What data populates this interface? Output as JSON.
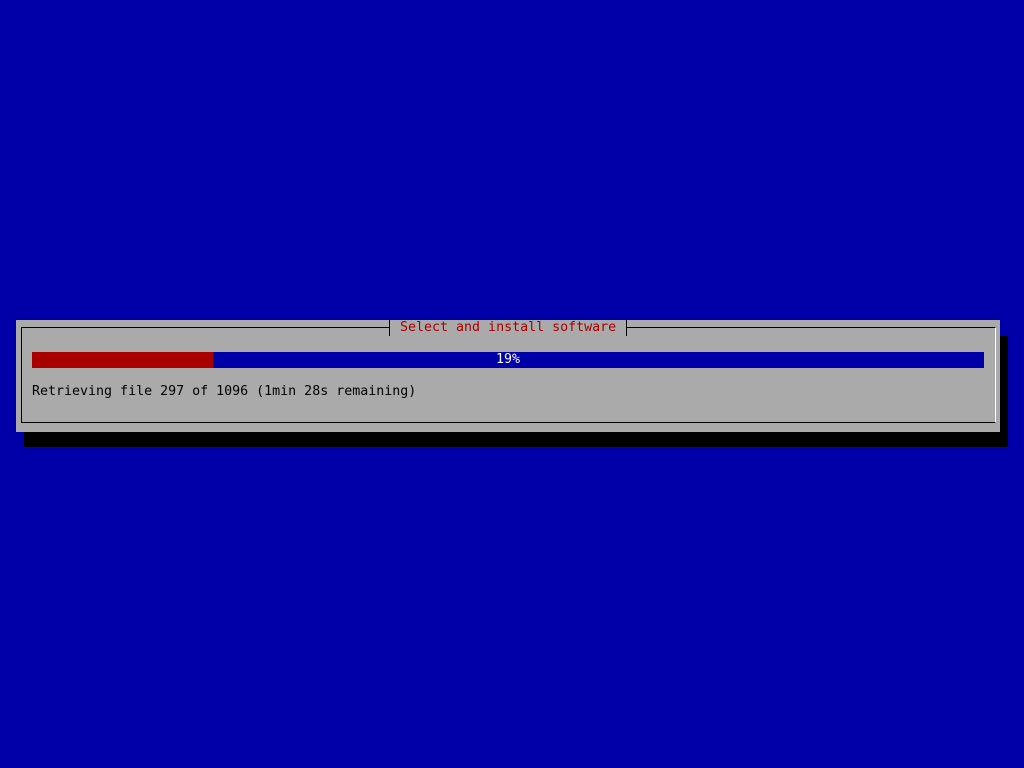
{
  "dialog": {
    "title": "Select and install software",
    "progress_percent": 19,
    "progress_label": "19%",
    "status_text": "Retrieving file 297 of 1096 (1min 28s remaining)"
  },
  "colors": {
    "background": "#0000a8",
    "dialog": "#aaaaaa",
    "title": "#a80000",
    "progress_fill": "#a80000",
    "progress_track": "#0000a8"
  }
}
